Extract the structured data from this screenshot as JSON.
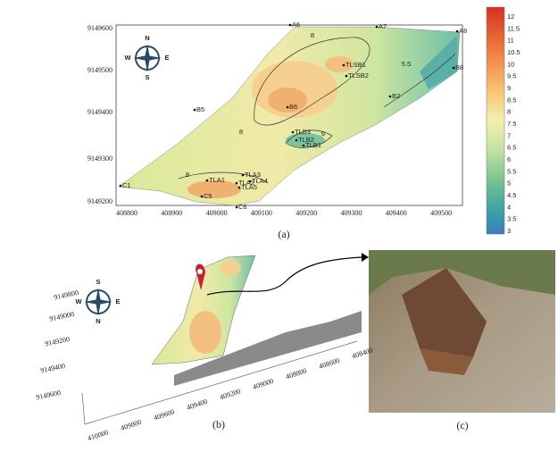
{
  "panel_a": {
    "caption": "(a)",
    "yticks": [
      9149600,
      9149500,
      9149400,
      9149300,
      9149200
    ],
    "xticks": [
      408800,
      408900,
      409000,
      409100,
      409200,
      409300,
      409400,
      409500
    ],
    "points": [
      "A6",
      "A7",
      "A8",
      "B8",
      "TLSB1",
      "TLSB2",
      "B5",
      "B6",
      "B2",
      "TLB3",
      "TLB2",
      "TLB1",
      "TLA1",
      "TLA3",
      "TLA4",
      "TLA2",
      "TLA5",
      "C1",
      "C5",
      "C6"
    ],
    "contour_labels": [
      "8",
      "8",
      "5.5",
      "8",
      "6"
    ],
    "colorbar": [
      12,
      11.5,
      11,
      10.5,
      10,
      9.5,
      9,
      8.5,
      8,
      7.5,
      7,
      6.5,
      6,
      5.5,
      5,
      4.5,
      4,
      3.5,
      3
    ],
    "compass": [
      "N",
      "S",
      "E",
      "W"
    ]
  },
  "panel_b": {
    "caption": "(b)",
    "yticks": [
      9149800,
      9149000,
      9149200,
      9149400,
      9149600
    ],
    "xticks": [
      410000,
      409800,
      409600,
      409400,
      409200,
      409000,
      408800,
      408600,
      408400
    ],
    "compass": [
      "S",
      "N",
      "E",
      "W"
    ]
  },
  "panel_c": {
    "caption": "(c)"
  }
}
